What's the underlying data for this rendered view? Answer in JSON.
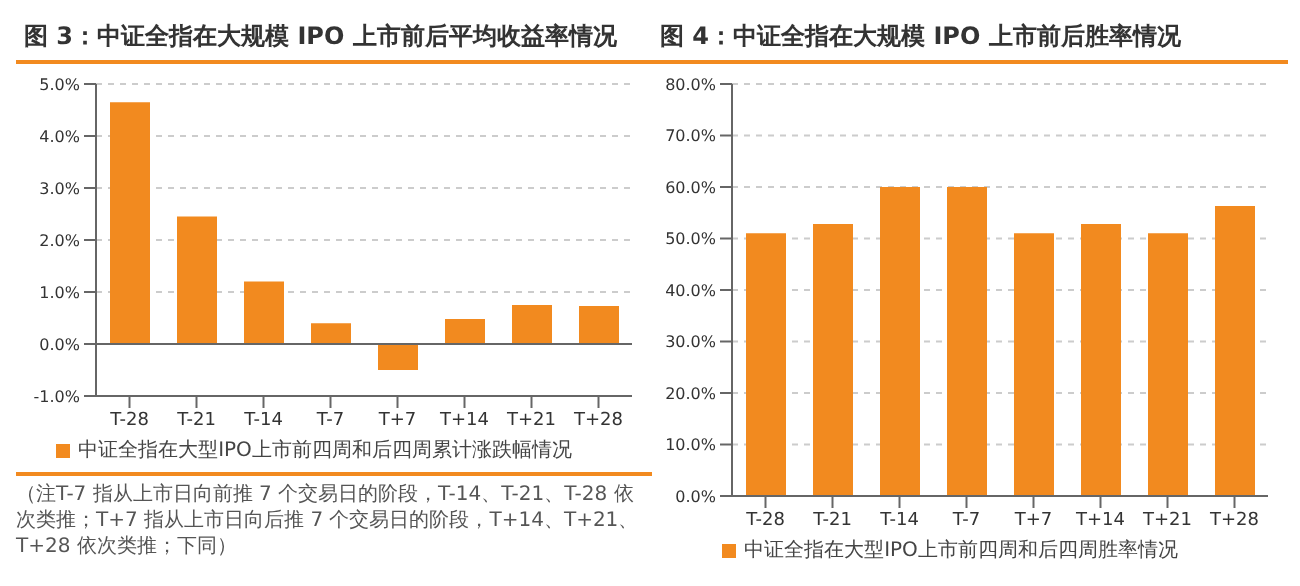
{
  "chart_data": [
    {
      "type": "bar",
      "title": "图 3：中证全指在大规模 IPO 上市前后平均收益率情况",
      "categories": [
        "T-28",
        "T-21",
        "T-14",
        "T-7",
        "T+7",
        "T+14",
        "T+21",
        "T+28"
      ],
      "series": [
        {
          "name": "中证全指在大型IPO上市前四周和后四周累计涨跌幅情况",
          "color": "#f28a1f",
          "values": [
            4.65,
            2.45,
            1.2,
            0.4,
            -0.5,
            0.48,
            0.75,
            0.73
          ]
        }
      ],
      "ylim": [
        -1,
        5
      ],
      "yticks": [
        {
          "value": -1,
          "label": "-1.0%"
        },
        {
          "value": 0,
          "label": "0.0%"
        },
        {
          "value": 1,
          "label": "1.0%"
        },
        {
          "value": 2,
          "label": "2.0%"
        },
        {
          "value": 3,
          "label": "3.0%"
        },
        {
          "value": 4,
          "label": "4.0%"
        },
        {
          "value": 5,
          "label": "5.0%"
        }
      ],
      "grid": "y",
      "legend": "bottom",
      "annotations": [
        "（注T-7 指从上市日向前推 7 个交易日的阶段，T-14、T-21、T-28 依次类推；T+7 指从上市日向后推 7 个交易日的阶段，T+14、T+21、T+28 依次类推；下同）"
      ]
    },
    {
      "type": "bar",
      "title": "图 4：中证全指在大规模 IPO 上市前后胜率情况",
      "categories": [
        "T-28",
        "T-21",
        "T-14",
        "T-7",
        "T+7",
        "T+14",
        "T+21",
        "T+28"
      ],
      "series": [
        {
          "name": "中证全指在大型IPO上市前四周和后四周胜率情况",
          "color": "#f28a1f",
          "values": [
            51,
            52.8,
            60,
            60,
            51,
            52.8,
            51,
            56.3
          ]
        }
      ],
      "ylim": [
        0,
        80
      ],
      "yticks": [
        {
          "value": 0,
          "label": "0.0%"
        },
        {
          "value": 10,
          "label": "10.0%"
        },
        {
          "value": 20,
          "label": "20.0%"
        },
        {
          "value": 30,
          "label": "30.0%"
        },
        {
          "value": 40,
          "label": "40.0%"
        },
        {
          "value": 50,
          "label": "50.0%"
        },
        {
          "value": 60,
          "label": "60.0%"
        },
        {
          "value": 70,
          "label": "70.0%"
        },
        {
          "value": 80,
          "label": "80.0%"
        }
      ],
      "grid": "y",
      "legend": "bottom"
    }
  ]
}
